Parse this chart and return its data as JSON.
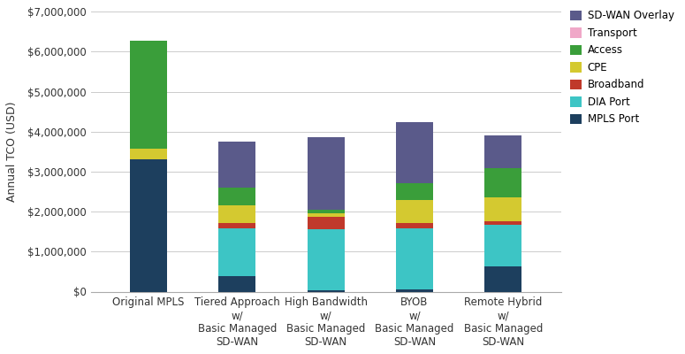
{
  "categories": [
    "Original MPLS",
    "Tiered Approach\nw/\nBasic Managed\nSD-WAN",
    "High Bandwidth\nw/\nBasic Managed\nSD-WAN",
    "BYOB\nw/\nBasic Managed\nSD-WAN",
    "Remote Hybrid\nw/\nBasic Managed\nSD-WAN"
  ],
  "series": {
    "MPLS Port": [
      3300000,
      380000,
      40000,
      60000,
      620000
    ],
    "DIA Port": [
      0,
      1200000,
      1520000,
      1520000,
      1050000
    ],
    "Broadband": [
      0,
      130000,
      300000,
      130000,
      80000
    ],
    "CPE": [
      280000,
      450000,
      90000,
      580000,
      600000
    ],
    "Access": [
      2700000,
      440000,
      90000,
      430000,
      730000
    ],
    "Transport": [
      0,
      0,
      0,
      0,
      0
    ],
    "SD-WAN Overlay": [
      0,
      1160000,
      1820000,
      1520000,
      820000
    ]
  },
  "colors": {
    "MPLS Port": "#1d3f5e",
    "DIA Port": "#3dc5c5",
    "Broadband": "#c0392b",
    "CPE": "#d4c930",
    "Access": "#3a9e3a",
    "Transport": "#f0a8c8",
    "SD-WAN Overlay": "#5a5a8a"
  },
  "ylabel": "Annual TCO (USD)",
  "ylim": [
    0,
    7000000
  ],
  "yticks": [
    0,
    1000000,
    2000000,
    3000000,
    4000000,
    5000000,
    6000000,
    7000000
  ],
  "background_color": "#ffffff",
  "bar_width": 0.42,
  "legend_order": [
    "SD-WAN Overlay",
    "Transport",
    "Access",
    "CPE",
    "Broadband",
    "DIA Port",
    "MPLS Port"
  ]
}
